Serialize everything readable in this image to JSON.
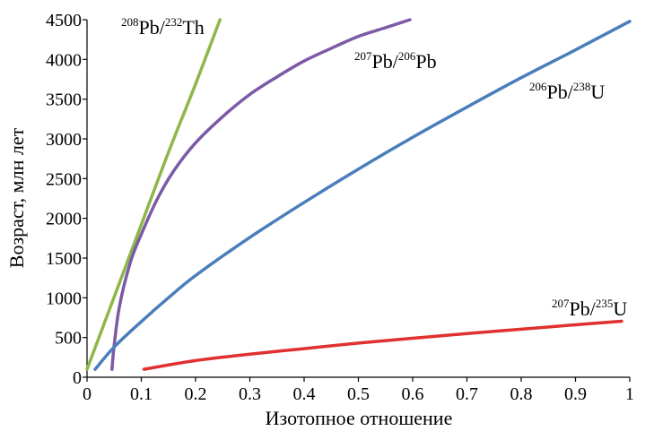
{
  "chart_data": {
    "type": "line",
    "xlabel": "Изотопное отношение",
    "ylabel": "Возраст, млн лет",
    "xlim": [
      0,
      1
    ],
    "ylim": [
      0,
      4500
    ],
    "x_ticks": [
      "0",
      "0.1",
      "0.2",
      "0.3",
      "0.4",
      "0.5",
      "0.6",
      "0.7",
      "0.8",
      "0.9",
      "1"
    ],
    "y_ticks": [
      "0",
      "500",
      "1000",
      "1500",
      "2000",
      "2500",
      "3000",
      "3500",
      "4000",
      "4500"
    ],
    "grid": false,
    "series": [
      {
        "label_parts": [
          {
            "sup": "208"
          },
          {
            "text": "Pb/"
          },
          {
            "sup": "232"
          },
          {
            "text": "Th"
          }
        ],
        "color": "#8db849",
        "x": [
          0.0,
          0.05,
          0.1,
          0.15,
          0.2,
          0.245
        ],
        "y": [
          100,
          1010,
          1920,
          2830,
          3690,
          4500
        ]
      },
      {
        "label_parts": [
          {
            "sup": "207"
          },
          {
            "text": "Pb/"
          },
          {
            "sup": "206"
          },
          {
            "text": "Pb"
          }
        ],
        "color": "#7b5aa6",
        "x": [
          0.046,
          0.05,
          0.06,
          0.08,
          0.1,
          0.13,
          0.16,
          0.2,
          0.25,
          0.3,
          0.35,
          0.4,
          0.45,
          0.5,
          0.55,
          0.595
        ],
        "y": [
          100,
          400,
          900,
          1450,
          1800,
          2250,
          2600,
          2950,
          3280,
          3560,
          3780,
          3980,
          4140,
          4290,
          4400,
          4500
        ]
      },
      {
        "label_parts": [
          {
            "sup": "206"
          },
          {
            "text": "Pb/"
          },
          {
            "sup": "238"
          },
          {
            "text": "U"
          }
        ],
        "color": "#4a7ebb",
        "x": [
          0.015,
          0.05,
          0.1,
          0.15,
          0.2,
          0.3,
          0.4,
          0.5,
          0.6,
          0.7,
          0.8,
          0.9,
          1.0
        ],
        "y": [
          100,
          380,
          700,
          1000,
          1280,
          1760,
          2200,
          2620,
          3020,
          3400,
          3770,
          4120,
          4480
        ]
      },
      {
        "label_parts": [
          {
            "sup": "207"
          },
          {
            "text": "Pb/"
          },
          {
            "sup": "235"
          },
          {
            "text": "U"
          }
        ],
        "color": "#e03030",
        "x": [
          0.105,
          0.2,
          0.3,
          0.4,
          0.5,
          0.6,
          0.7,
          0.8,
          0.9,
          0.985
        ],
        "y": [
          100,
          210,
          290,
          360,
          430,
          490,
          550,
          605,
          660,
          705
        ]
      }
    ]
  }
}
